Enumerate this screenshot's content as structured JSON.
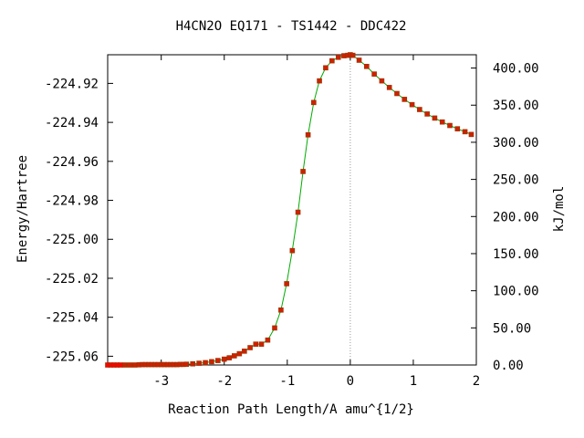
{
  "chart_data": {
    "type": "line",
    "title": "H4CN2O   EQ171 - TS1442 - DDC422",
    "xlabel": "Reaction Path Length/A amu^{1/2}",
    "ylabel": "Energy/Hartree",
    "y2label": "kJ/mol",
    "xlim": [
      -3.85,
      2.0
    ],
    "ylim": [
      -225.0645,
      -224.9053
    ],
    "y2lim": [
      0.0,
      417.9
    ],
    "x_ticks": [
      -3,
      -2,
      -1,
      0,
      1,
      2
    ],
    "x_tick_labels": [
      "-3",
      "-2",
      "-1",
      "0",
      "1",
      "2"
    ],
    "y_ticks": [
      -224.92,
      -224.94,
      -224.96,
      -224.98,
      -225.0,
      -225.02,
      -225.04,
      -225.06
    ],
    "y_tick_labels": [
      "-224.92",
      "-224.94",
      "-224.96",
      "-224.98",
      "-225.00",
      "-225.02",
      "-225.04",
      "-225.06"
    ],
    "y2_ticks": [
      0,
      50,
      100,
      150,
      200,
      250,
      300,
      350,
      400
    ],
    "y2_tick_labels": [
      "0.00",
      "50.00",
      "100.00",
      "150.00",
      "200.00",
      "250.00",
      "300.00",
      "350.00",
      "400.00"
    ],
    "ts_marker_x": 0.0,
    "grid": false,
    "colors": {
      "line": "#00aa00",
      "points": "#cc2200",
      "endpoint": "#ff0000",
      "ts_line": "#999999"
    },
    "series": [
      {
        "x": [
          -3.85,
          -3.8,
          -3.75,
          -3.7,
          -3.65,
          -3.58,
          -3.5,
          -3.42,
          -3.35,
          -3.3,
          -3.25,
          -3.2,
          -3.15,
          -3.1,
          -3.05,
          -3.0,
          -2.95,
          -2.9,
          -2.85,
          -2.8,
          -2.75,
          -2.7,
          -2.65,
          -2.6,
          -2.5,
          -2.4,
          -2.3,
          -2.2,
          -2.1,
          -2.0,
          -1.92,
          -1.84,
          -1.76,
          -1.68,
          -1.59,
          -1.5,
          -1.41,
          -1.31,
          -1.2,
          -1.1,
          -1.01,
          -0.92,
          -0.83,
          -0.75,
          -0.67,
          -0.58,
          -0.49,
          -0.39,
          -0.29,
          -0.19,
          -0.1,
          -0.04,
          0.0,
          0.04,
          0.14,
          0.26,
          0.38,
          0.5,
          0.62,
          0.74,
          0.86,
          0.98,
          1.1,
          1.22,
          1.34,
          1.46,
          1.58,
          1.7,
          1.82,
          1.92
        ],
        "y": [
          -225.0645,
          -225.0645,
          -225.0645,
          -225.0645,
          -225.0645,
          -225.0645,
          -225.0645,
          -225.0645,
          -225.0644,
          -225.0643,
          -225.0643,
          -225.0643,
          -225.0643,
          -225.0643,
          -225.0643,
          -225.0643,
          -225.0643,
          -225.0643,
          -225.0643,
          -225.0643,
          -225.0643,
          -225.0642,
          -225.0642,
          -225.0641,
          -225.0639,
          -225.0636,
          -225.0633,
          -225.0628,
          -225.0622,
          -225.0615,
          -225.0608,
          -225.0598,
          -225.0587,
          -225.0574,
          -225.0556,
          -225.0538,
          -225.0538,
          -225.0517,
          -225.0455,
          -225.0363,
          -225.0228,
          -225.0058,
          -224.9861,
          -224.9652,
          -224.9464,
          -224.9298,
          -224.9187,
          -224.912,
          -224.9084,
          -224.9066,
          -224.9058,
          -224.9056,
          -224.9053,
          -224.9056,
          -224.9081,
          -224.9113,
          -224.9152,
          -224.9187,
          -224.9221,
          -224.9252,
          -224.9282,
          -224.9309,
          -224.9334,
          -224.9357,
          -224.9378,
          -224.9398,
          -224.9416,
          -224.9433,
          -224.9448,
          -224.9462
        ]
      }
    ]
  }
}
